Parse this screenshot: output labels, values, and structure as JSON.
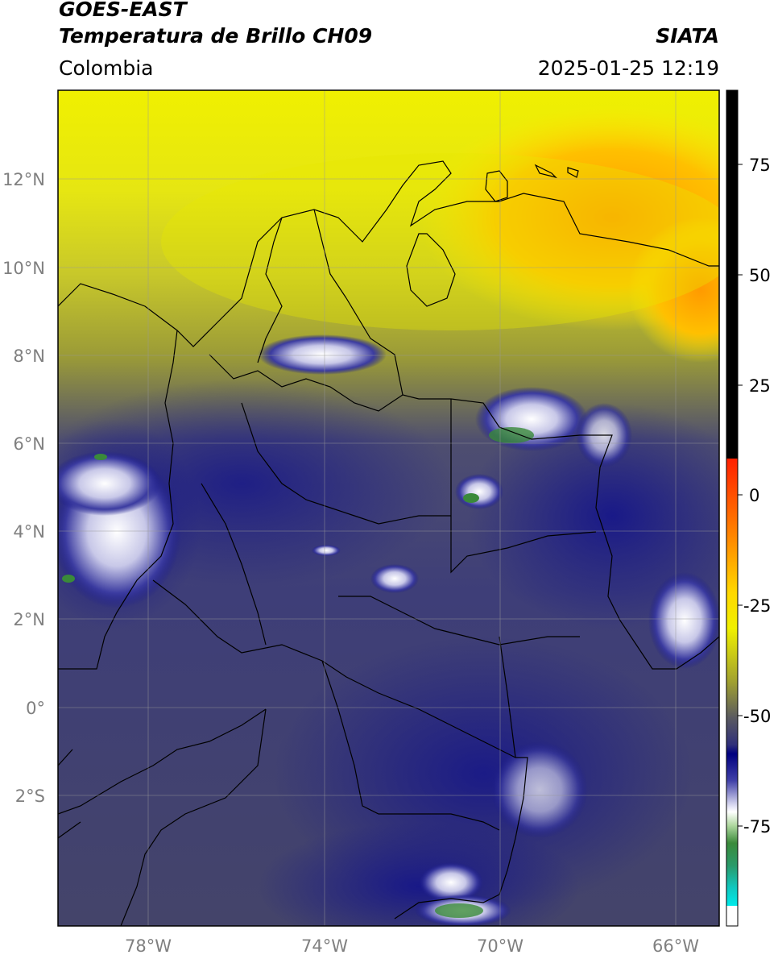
{
  "header": {
    "line1": "GOES-EAST",
    "line2": "Temperatura de Brillo CH09",
    "organization": "SIATA",
    "region": "Colombia",
    "timestamp": "2025-01-25 12:19"
  },
  "map": {
    "lat_labels": [
      "12°N",
      "10°N",
      "8°N",
      "6°N",
      "4°N",
      "2°N",
      "0°",
      "2°S"
    ],
    "lon_labels": [
      "78°W",
      "74°W",
      "70°W",
      "66°W"
    ],
    "extent": {
      "lon_min": -80.0,
      "lon_max": -65.0,
      "lat_min": -4.2,
      "lat_max": 14.0
    },
    "grid": true
  },
  "colorbar": {
    "tick_labels": [
      "75",
      "50",
      "25",
      "0",
      "-25",
      "-50",
      "-75"
    ],
    "colors": {
      "top": "#000000",
      "red": "#ff1a00",
      "orange": "#ff9000",
      "yellow": "#ffff00",
      "olive": "#808020",
      "navy": "#00007f",
      "white": "#ffffff",
      "green": "#1f7f2f",
      "cyan": "#00e5e5"
    }
  }
}
